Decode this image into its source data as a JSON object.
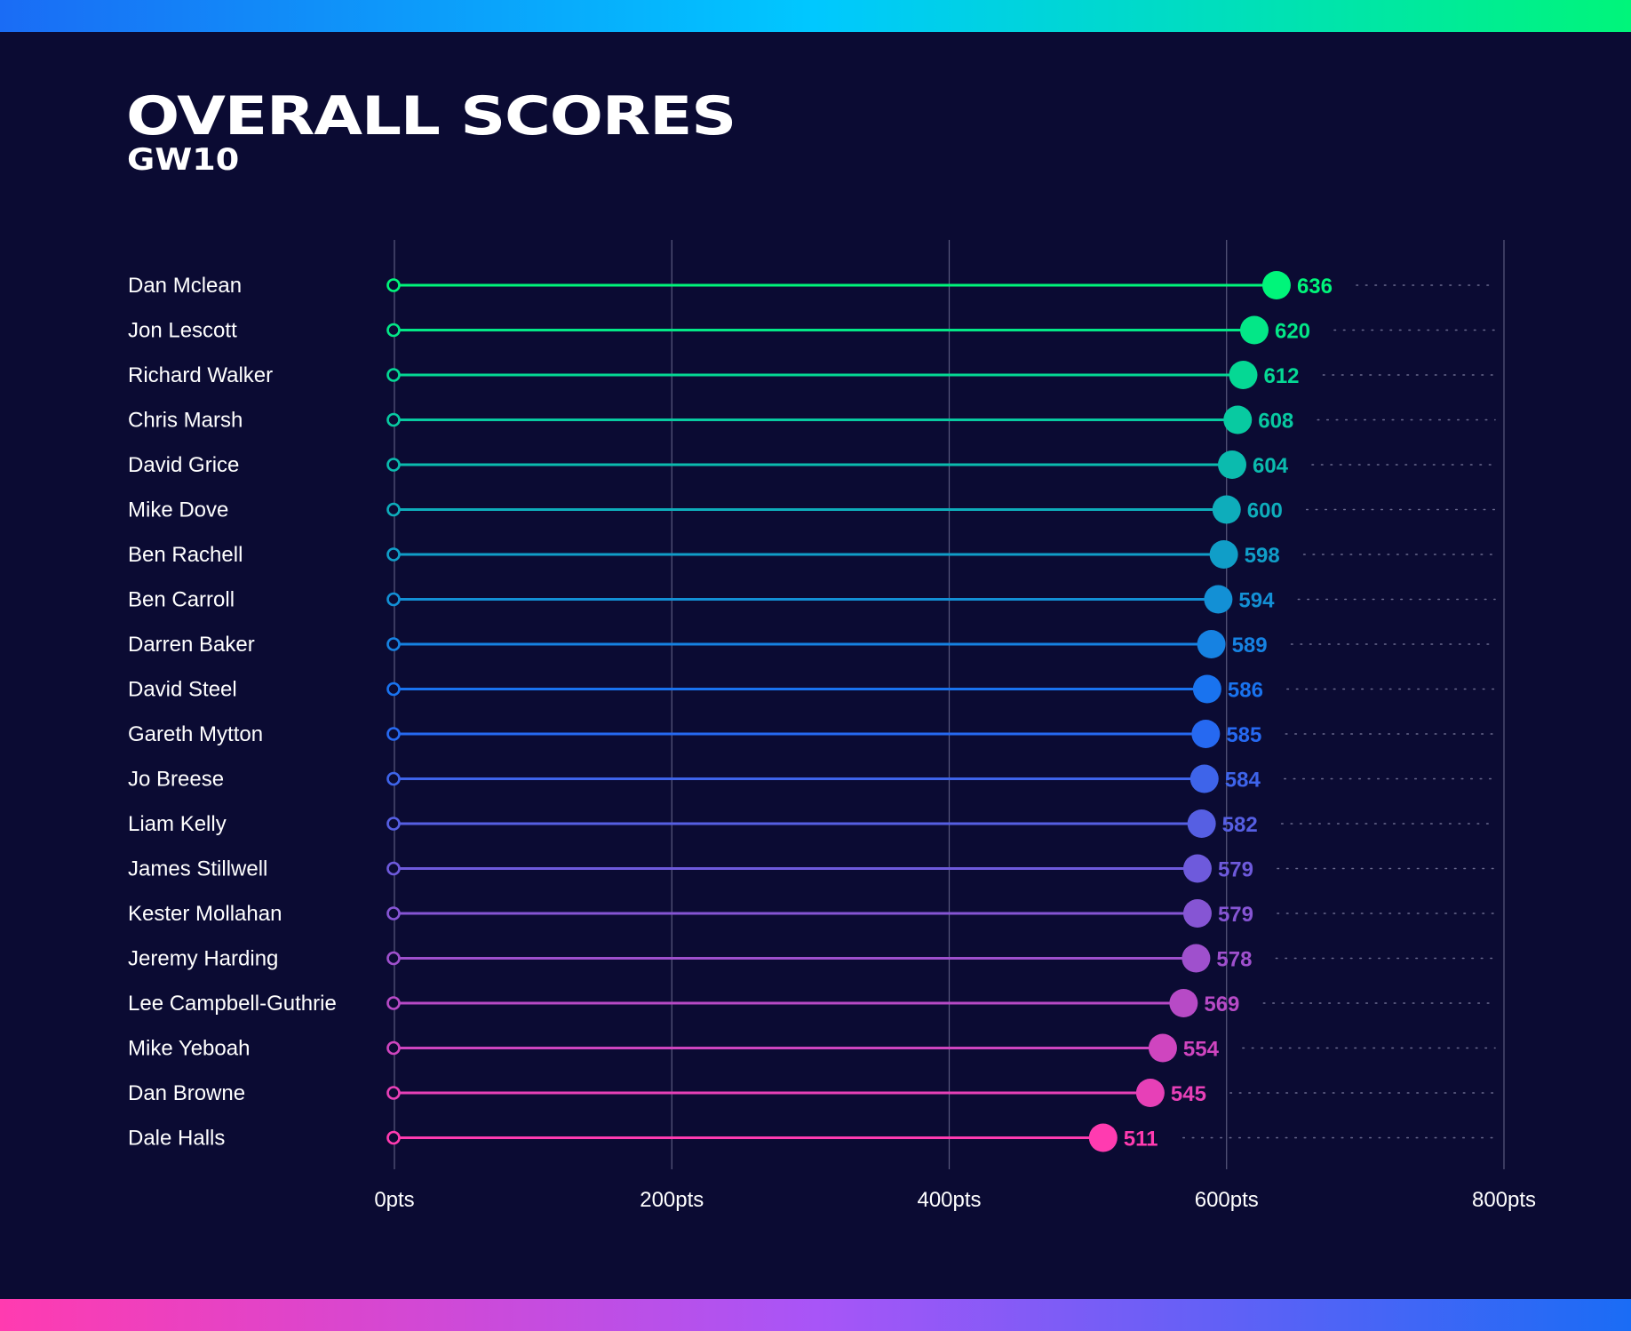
{
  "colors": {
    "background": "#0b0b33",
    "top_gradient": [
      "#1a6cf5",
      "#00c8ff",
      "#00f57a"
    ],
    "bottom_gradient": [
      "#ff3bb0",
      "#a855f7",
      "#1a6cf5"
    ],
    "series_start": "#00f57a",
    "series_mid": "#1a6cf5",
    "series_end": "#ff3bb0"
  },
  "chart_data": {
    "type": "lollipop",
    "title": "OVERALL SCORES",
    "subtitle": "GW10",
    "x_tick_labels": [
      "0pts",
      "200pts",
      "400pts",
      "600pts",
      "800pts"
    ],
    "x_ticks": [
      0,
      200,
      400,
      600,
      800
    ],
    "xlim": [
      0,
      800
    ],
    "grid": true,
    "categories": [
      "Dan Mclean",
      "Jon Lescott",
      "Richard Walker",
      "Chris Marsh",
      "David Grice",
      "Mike Dove",
      "Ben Rachell",
      "Ben Carroll",
      "Darren Baker",
      "David Steel",
      "Gareth Mytton",
      "Jo Breese",
      "Liam Kelly",
      "James Stillwell",
      "Kester Mollahan",
      "Jeremy Harding",
      "Lee Campbell-Guthrie",
      "Mike Yeboah",
      "Dan Browne",
      "Dale Halls"
    ],
    "values": [
      636,
      620,
      612,
      608,
      604,
      600,
      598,
      594,
      589,
      586,
      585,
      584,
      582,
      579,
      579,
      578,
      569,
      554,
      545,
      511
    ]
  }
}
